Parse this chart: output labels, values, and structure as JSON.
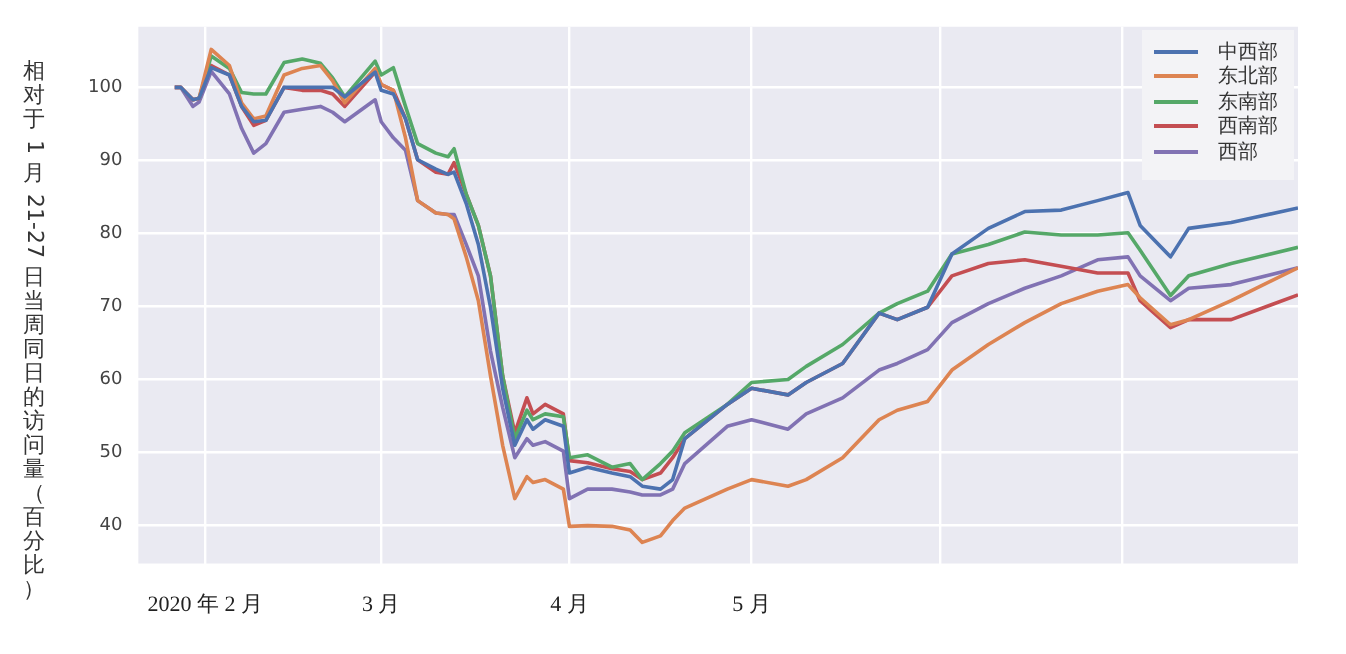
{
  "chart_data": {
    "type": "line",
    "ylabel": "相对于 1 月 21-27 日当周同日的访问量（百分比）",
    "x": [
      "2020-01-27",
      "2020-01-28",
      "2020-01-30",
      "2020-01-31",
      "2020-02-02",
      "2020-02-05",
      "2020-02-07",
      "2020-02-09",
      "2020-02-11",
      "2020-02-14",
      "2020-02-17",
      "2020-02-20",
      "2020-02-22",
      "2020-02-24",
      "2020-02-29",
      "2020-03-01",
      "2020-03-03",
      "2020-03-05",
      "2020-03-07",
      "2020-03-10",
      "2020-03-12",
      "2020-03-13",
      "2020-03-15",
      "2020-03-17",
      "2020-03-19",
      "2020-03-21",
      "2020-03-23",
      "2020-03-25",
      "2020-03-26",
      "2020-03-28",
      "2020-03-31",
      "2020-04-01",
      "2020-04-04",
      "2020-04-08",
      "2020-04-11",
      "2020-04-13",
      "2020-04-16",
      "2020-04-18",
      "2020-04-20",
      "2020-04-27",
      "2020-05-01",
      "2020-05-07",
      "2020-05-10",
      "2020-05-16",
      "2020-05-22",
      "2020-05-25",
      "2020-05-30",
      "2020-06-03",
      "2020-06-09",
      "2020-06-15",
      "2020-06-21",
      "2020-06-27",
      "2020-07-02",
      "2020-07-04",
      "2020-07-09",
      "2020-07-12",
      "2020-07-19",
      "2020-07-30"
    ],
    "series": [
      {
        "name": "中西部",
        "color": "#4c72b0",
        "values": [
          100,
          100,
          98.3,
          98.5,
          102.7,
          101.7,
          97.4,
          95.3,
          95.5,
          100,
          100,
          100,
          100,
          98.7,
          102.1,
          99.6,
          99.1,
          95.7,
          90.1,
          88.8,
          88.1,
          88.4,
          84.1,
          78.5,
          69.9,
          58.8,
          51,
          54.5,
          53.2,
          54.5,
          53.6,
          47.2,
          48,
          47.2,
          46.7,
          45.4,
          45,
          46.3,
          51.9,
          56.6,
          58.8,
          57.9,
          59.6,
          62.2,
          69.1,
          68.2,
          69.9,
          77.2,
          80.7,
          83,
          83.2,
          84.5,
          85.6,
          81.1,
          76.8,
          80.7,
          81.5,
          83.5
        ]
      },
      {
        "name": "东北部",
        "color": "#dd8452",
        "values": [
          100,
          100,
          98.3,
          98.5,
          105.2,
          103,
          97.9,
          95.7,
          96.1,
          101.7,
          102.6,
          103,
          100.9,
          97.9,
          102.6,
          100.4,
          99.6,
          93.1,
          84.5,
          82.8,
          82.6,
          82,
          76.8,
          70.8,
          60.5,
          51,
          43.7,
          46.7,
          45.9,
          46.3,
          45,
          39.9,
          40,
          39.9,
          39.4,
          37.7,
          38.6,
          40.7,
          42.4,
          45,
          46.3,
          45.4,
          46.3,
          49.3,
          54.5,
          55.8,
          57,
          61.3,
          64.8,
          67.8,
          70.4,
          72.1,
          73,
          71.2,
          67.5,
          68.2,
          70.8,
          75.3
        ]
      },
      {
        "name": "东南部",
        "color": "#55a868",
        "values": [
          null,
          null,
          null,
          98.5,
          104.3,
          102.6,
          99.3,
          99.1,
          99.1,
          103.4,
          103.9,
          103.3,
          101.3,
          98.7,
          103.6,
          101.7,
          102.7,
          97.4,
          92.3,
          91,
          90.5,
          91.6,
          85.4,
          81.1,
          74.2,
          60.5,
          51.9,
          55.8,
          54.5,
          55.3,
          54.9,
          49.3,
          49.7,
          48,
          48.5,
          46.3,
          48.5,
          50.2,
          52.7,
          56.6,
          59.6,
          60,
          61.8,
          64.8,
          69.1,
          70.4,
          72.1,
          77.2,
          78.5,
          80.2,
          79.8,
          79.8,
          80.1,
          77.7,
          71.5,
          74.2,
          75.9,
          78.1
        ]
      },
      {
        "name": "西南部",
        "color": "#c44e52",
        "values": [
          100,
          100,
          98.3,
          98.5,
          103,
          101.7,
          97.4,
          94.8,
          95.5,
          100,
          99.6,
          99.6,
          99.1,
          97.4,
          102.1,
          100.4,
          99.6,
          95.7,
          90.1,
          88.4,
          88.1,
          89.7,
          85.4,
          81.1,
          74.2,
          60.5,
          52.7,
          57.5,
          55.3,
          56.6,
          55.3,
          48.9,
          48.6,
          47.8,
          47.4,
          46.3,
          47.2,
          49.3,
          51.9,
          56.6,
          58.8,
          57.9,
          59.6,
          62.2,
          69.1,
          68.2,
          69.9,
          74.2,
          75.9,
          76.4,
          75.5,
          74.6,
          74.6,
          70.8,
          67.1,
          68.2,
          68.2,
          71.6
        ]
      },
      {
        "name": "西部",
        "color": "#8172b3",
        "values": [
          100,
          100,
          97.4,
          98,
          102.2,
          99.1,
          94.4,
          91,
          92.3,
          96.6,
          97,
          97.4,
          96.6,
          95.3,
          98.3,
          95.3,
          93.1,
          91.4,
          84.5,
          82.8,
          82.6,
          82.6,
          78.5,
          74.2,
          63.9,
          56.2,
          49.3,
          51.9,
          51,
          51.5,
          50.2,
          43.7,
          45,
          45,
          44.6,
          44.2,
          44.2,
          45,
          48.5,
          53.6,
          54.5,
          53.2,
          55.3,
          57.5,
          61.3,
          62.2,
          64.1,
          67.8,
          70.4,
          72.5,
          74.2,
          76.4,
          76.8,
          74.2,
          70.8,
          72.5,
          73,
          75.3
        ]
      }
    ],
    "xlim": [
      "2020-01-21",
      "2020-07-30"
    ],
    "xticks": [
      {
        "value": "2020-02-01",
        "label": "2020 年 2 月"
      },
      {
        "value": "2020-03-01",
        "label": "3 月"
      },
      {
        "value": "2020-04-01",
        "label": "4 月"
      },
      {
        "value": "2020-05-01",
        "label": "5 月"
      },
      {
        "value": "2020-06-01",
        "label": null
      },
      {
        "value": "2020-07-01",
        "label": null
      }
    ],
    "ylim": [
      34.8,
      108.3
    ],
    "yticks": [
      40,
      50,
      60,
      70,
      80,
      90,
      100
    ],
    "grid": true,
    "legend": "top right"
  }
}
